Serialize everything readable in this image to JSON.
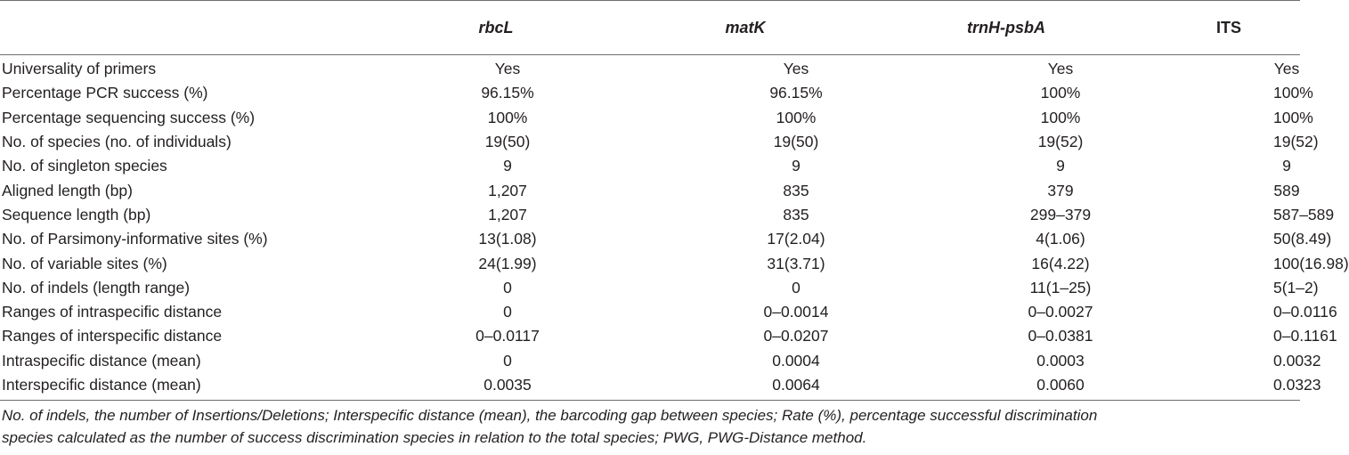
{
  "table": {
    "headers": [
      "",
      "rbcL",
      "matK",
      "trnH-psbA",
      "ITS"
    ],
    "rows": [
      {
        "label": "Universality of primers",
        "values": [
          "Yes",
          "Yes",
          "Yes",
          "Yes"
        ]
      },
      {
        "label": "Percentage PCR success (%)",
        "values": [
          "96.15%",
          "96.15%",
          "100%",
          "100%"
        ]
      },
      {
        "label": "Percentage sequencing success (%)",
        "values": [
          "100%",
          "100%",
          "100%",
          "100%"
        ]
      },
      {
        "label": "No. of species (no. of individuals)",
        "values": [
          "19(50)",
          "19(50)",
          "19(52)",
          "19(52)"
        ]
      },
      {
        "label": "No. of singleton species",
        "values": [
          "9",
          "9",
          "9",
          "9"
        ]
      },
      {
        "label": "Aligned length (bp)",
        "values": [
          "1,207",
          "835",
          "379",
          "589"
        ]
      },
      {
        "label": "Sequence length (bp)",
        "values": [
          "1,207",
          "835",
          "299–379",
          "587–589"
        ]
      },
      {
        "label": "No. of Parsimony-informative sites (%)",
        "values": [
          "13(1.08)",
          "17(2.04)",
          "4(1.06)",
          "50(8.49)"
        ]
      },
      {
        "label": "No. of variable sites (%)",
        "values": [
          "24(1.99)",
          "31(3.71)",
          "16(4.22)",
          "100(16.98)"
        ]
      },
      {
        "label": "No. of indels (length range)",
        "values": [
          "0",
          "0",
          "11(1–25)",
          "5(1–2)"
        ]
      },
      {
        "label": "Ranges of intraspecific distance",
        "values": [
          "0",
          "0–0.0014",
          "0–0.0027",
          "0–0.0116"
        ]
      },
      {
        "label": "Ranges of interspecific distance",
        "values": [
          "0–0.0117",
          "0–0.0207",
          "0–0.0381",
          "0–0.1161"
        ]
      },
      {
        "label": "Intraspecific distance (mean)",
        "values": [
          "0",
          "0.0004",
          "0.0003",
          "0.0032"
        ]
      },
      {
        "label": "Interspecific distance (mean)",
        "values": [
          "0.0035",
          "0.0064",
          "0.0060",
          "0.0323"
        ]
      }
    ]
  },
  "footnote": {
    "line1": "No. of indels, the number of Insertions/Deletions; Interspecific distance (mean), the barcoding gap between species; Rate (%), percentage successful discrimination",
    "line2": "species calculated as the number of success discrimination species in relation to the total species; PWG, PWG-Distance method."
  }
}
